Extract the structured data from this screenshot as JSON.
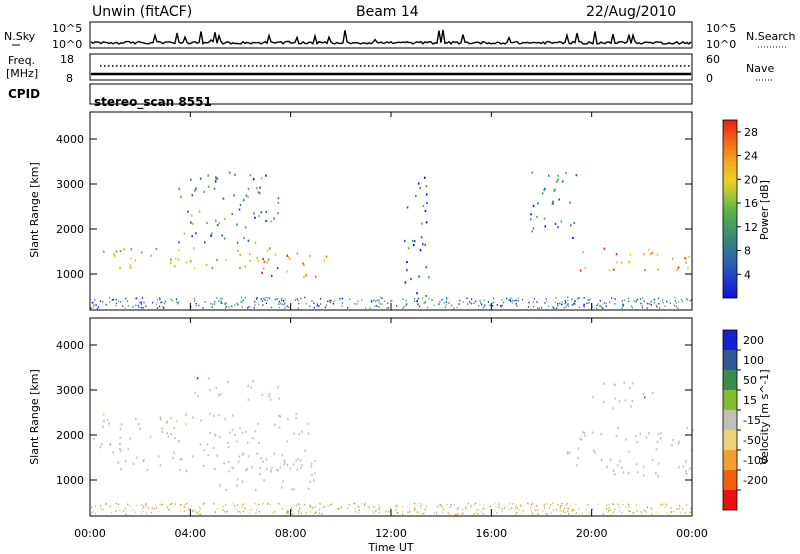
{
  "header": {
    "station": "Unwin (fitACF)",
    "beam": "Beam 14",
    "date": "22/Aug/2010"
  },
  "noise_panel": {
    "left_label": "N.Sky",
    "right_label": "N.Search",
    "left_ticks": [
      "10^5",
      "10^0"
    ],
    "right_ticks": [
      "10^5",
      "10^0"
    ]
  },
  "freq_panel": {
    "left_label_1": "Freq.",
    "left_label_2": "[MHz]",
    "left_ticks": [
      "18",
      "8"
    ],
    "right_label": "Nave",
    "right_ticks": [
      "60",
      "0"
    ]
  },
  "cpid_panel": {
    "label": "CPID",
    "value": "stereo_scan 8551"
  },
  "chart_data": [
    {
      "type": "heatmap",
      "name": "power",
      "ylabel": "Slant Range [km]",
      "yticks": [
        1000,
        2000,
        3000,
        4000
      ],
      "ylim": [
        200,
        4600
      ],
      "xlim": [
        0,
        24
      ],
      "colorbar": {
        "label": "Power [dB]",
        "ticks": [
          4,
          8,
          12,
          16,
          20,
          24,
          28
        ],
        "colors": [
          "#1010e0",
          "#2a5ab8",
          "#3a8a78",
          "#58b048",
          "#a8c838",
          "#f0d020",
          "#f5a81c",
          "#f06a18",
          "#e82010"
        ]
      },
      "regions": [
        {
          "t0": 0.0,
          "t1": 8.5,
          "r0": 1150,
          "r1": 1600,
          "level": 0.55
        },
        {
          "t0": 3.5,
          "t1": 7.5,
          "r0": 1700,
          "r1": 3300,
          "level": 0.3
        },
        {
          "t0": 6.5,
          "t1": 9.5,
          "r0": 900,
          "r1": 1450,
          "level": 0.8
        },
        {
          "t0": 19.0,
          "t1": 24.0,
          "r0": 1100,
          "r1": 1600,
          "level": 0.75
        },
        {
          "t0": 17.5,
          "t1": 19.5,
          "r0": 1800,
          "r1": 3300,
          "level": 0.25
        },
        {
          "t0": 12.5,
          "t1": 13.5,
          "r0": 300,
          "r1": 3200,
          "level": 0.2
        }
      ]
    },
    {
      "type": "heatmap",
      "name": "velocity",
      "ylabel": "Slant Range [km]",
      "xlabel": "Time UT",
      "yticks": [
        1000,
        2000,
        3000,
        4000
      ],
      "ylim": [
        200,
        4600
      ],
      "xlim": [
        0,
        24
      ],
      "xticks": [
        "00:00",
        "04:00",
        "08:00",
        "12:00",
        "16:00",
        "20:00",
        "00:00"
      ],
      "colorbar": {
        "label": "Velocity [m s^-1]",
        "ticks": [
          "200",
          "100",
          "50",
          "15",
          "-15",
          "-50",
          "-100",
          "-200"
        ],
        "colors": [
          "#1820d0",
          "#305898",
          "#3c8a50",
          "#80c030",
          "#c0c0b8",
          "#f0d078",
          "#f0a030",
          "#f06010",
          "#e81010"
        ]
      },
      "regions": [
        {
          "t0": 0.0,
          "t1": 9.0,
          "r0": 1200,
          "r1": 2500,
          "level": 0.5
        },
        {
          "t0": 5.0,
          "t1": 9.0,
          "r0": 800,
          "r1": 1500,
          "level": 0.5
        },
        {
          "t0": 4.0,
          "t1": 7.5,
          "r0": 2800,
          "r1": 3300,
          "level": 0.8
        },
        {
          "t0": 19.0,
          "t1": 24.0,
          "r0": 1100,
          "r1": 2200,
          "level": 0.5
        },
        {
          "t0": 20.0,
          "t1": 22.5,
          "r0": 2600,
          "r1": 3200,
          "level": 0.2
        }
      ]
    }
  ]
}
